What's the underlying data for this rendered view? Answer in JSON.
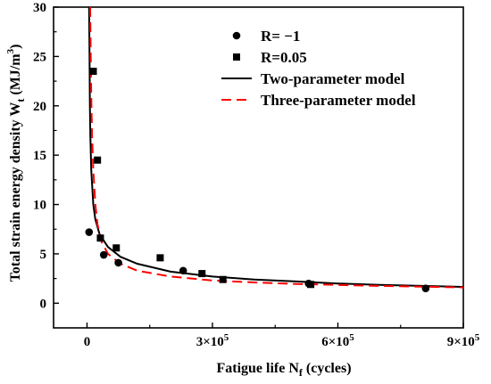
{
  "chart_data": {
    "type": "scatter",
    "xlabel": {
      "main": "Fatigue life N",
      "sub": "f",
      "tail": " (cycles)"
    },
    "ylabel": {
      "main": "Total strain energy density  W",
      "sub": "t",
      "unit": " (MJ/m",
      "sup": "3",
      "close": ")"
    },
    "xlim": [
      -80000,
      900000
    ],
    "ylim": [
      -2.5,
      30
    ],
    "x_ticks": [
      {
        "value": 0,
        "label": "0"
      },
      {
        "value": 300000,
        "label": "3×10",
        "sup": "5"
      },
      {
        "value": 600000,
        "label": "6×10",
        "sup": "5"
      },
      {
        "value": 900000,
        "label": "9×10",
        "sup": "5"
      }
    ],
    "y_ticks": [
      {
        "value": 0,
        "label": "0"
      },
      {
        "value": 5,
        "label": "5"
      },
      {
        "value": 10,
        "label": "10"
      },
      {
        "value": 15,
        "label": "15"
      },
      {
        "value": 20,
        "label": "20"
      },
      {
        "value": 25,
        "label": "25"
      },
      {
        "value": 30,
        "label": "30"
      }
    ],
    "grid": false,
    "legend_position": "top-right",
    "series": [
      {
        "name": "R= −1",
        "kind": "points",
        "marker": "circle",
        "color": "#000000",
        "points": [
          [
            5000,
            7.2
          ],
          [
            40000,
            4.9
          ],
          [
            75000,
            4.1
          ],
          [
            230000,
            3.3
          ],
          [
            530000,
            2.0
          ],
          [
            810000,
            1.5
          ]
        ]
      },
      {
        "name": "R=0.05",
        "kind": "points",
        "marker": "square",
        "color": "#000000",
        "points": [
          [
            15000,
            23.5
          ],
          [
            25000,
            14.5
          ],
          [
            32000,
            6.6
          ],
          [
            70000,
            5.6
          ],
          [
            175000,
            4.6
          ],
          [
            275000,
            3.0
          ],
          [
            325000,
            2.4
          ],
          [
            535000,
            1.9
          ]
        ]
      },
      {
        "name": "Two-parameter model",
        "kind": "line",
        "color": "#000000",
        "dash": "solid",
        "points": [
          [
            5000,
            30
          ],
          [
            6000,
            25
          ],
          [
            7000,
            20
          ],
          [
            8000,
            17
          ],
          [
            10000,
            13.5
          ],
          [
            15000,
            10.0
          ],
          [
            20000,
            8.5
          ],
          [
            30000,
            7.0
          ],
          [
            50000,
            5.7
          ],
          [
            80000,
            4.7
          ],
          [
            120000,
            4.0
          ],
          [
            200000,
            3.2
          ],
          [
            300000,
            2.7
          ],
          [
            400000,
            2.4
          ],
          [
            500000,
            2.2
          ],
          [
            600000,
            2.0
          ],
          [
            700000,
            1.85
          ],
          [
            800000,
            1.75
          ],
          [
            900000,
            1.65
          ]
        ]
      },
      {
        "name": "Three-parameter model",
        "kind": "line",
        "color": "#ff0000",
        "dash": "dashed",
        "points": [
          [
            7500,
            30
          ],
          [
            8500,
            26
          ],
          [
            10000,
            21
          ],
          [
            12000,
            17
          ],
          [
            15000,
            13.5
          ],
          [
            20000,
            10.0
          ],
          [
            25000,
            8.0
          ],
          [
            35000,
            6.2
          ],
          [
            50000,
            5.0
          ],
          [
            80000,
            4.0
          ],
          [
            120000,
            3.3
          ],
          [
            200000,
            2.7
          ],
          [
            300000,
            2.3
          ],
          [
            400000,
            2.1
          ],
          [
            500000,
            1.95
          ],
          [
            600000,
            1.85
          ],
          [
            700000,
            1.75
          ],
          [
            800000,
            1.68
          ],
          [
            900000,
            1.6
          ]
        ]
      }
    ]
  }
}
